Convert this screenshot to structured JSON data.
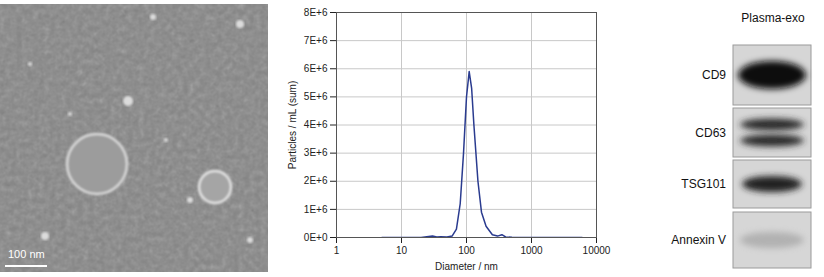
{
  "tem_image": {
    "scale_bar": "100 nm"
  },
  "chart_data": {
    "type": "line",
    "x_label": "Diameter / nm",
    "y_label": "Particles / mL (sum)",
    "x": [
      5,
      10,
      20,
      30,
      35,
      40,
      50,
      60,
      70,
      80,
      90,
      100,
      110,
      120,
      130,
      150,
      170,
      200,
      250,
      300,
      350,
      400,
      500,
      1000,
      6000
    ],
    "values": [
      0,
      0,
      0,
      50000,
      20000,
      30000,
      20000,
      50000,
      300000,
      1200000,
      3000000,
      5000000,
      5900000,
      5300000,
      4000000,
      2000000,
      900000,
      400000,
      100000,
      50000,
      100000,
      20000,
      10000,
      0,
      0
    ],
    "color": "#2a3b8f",
    "log": "x",
    "xlim": [
      1,
      10000
    ],
    "xticks": [
      1,
      10,
      100,
      1000,
      10000
    ],
    "ylim": [
      0,
      8000000
    ],
    "yticks": [
      {
        "value": 0,
        "label": "0E+0"
      },
      {
        "value": 1000000,
        "label": "1E+6"
      },
      {
        "value": 2000000,
        "label": "2E+6"
      },
      {
        "value": 3000000,
        "label": "3E+6"
      },
      {
        "value": 4000000,
        "label": "4E+6"
      },
      {
        "value": 5000000,
        "label": "5E+6"
      },
      {
        "value": 6000000,
        "label": "6E+6"
      },
      {
        "value": 7000000,
        "label": "7E+6"
      },
      {
        "value": 8000000,
        "label": "8E+6"
      }
    ],
    "grid": true
  },
  "western_blot": {
    "column": "Plasma-exo",
    "rows": [
      "CD9",
      "CD63",
      "TSG101",
      "Annexin V"
    ]
  }
}
